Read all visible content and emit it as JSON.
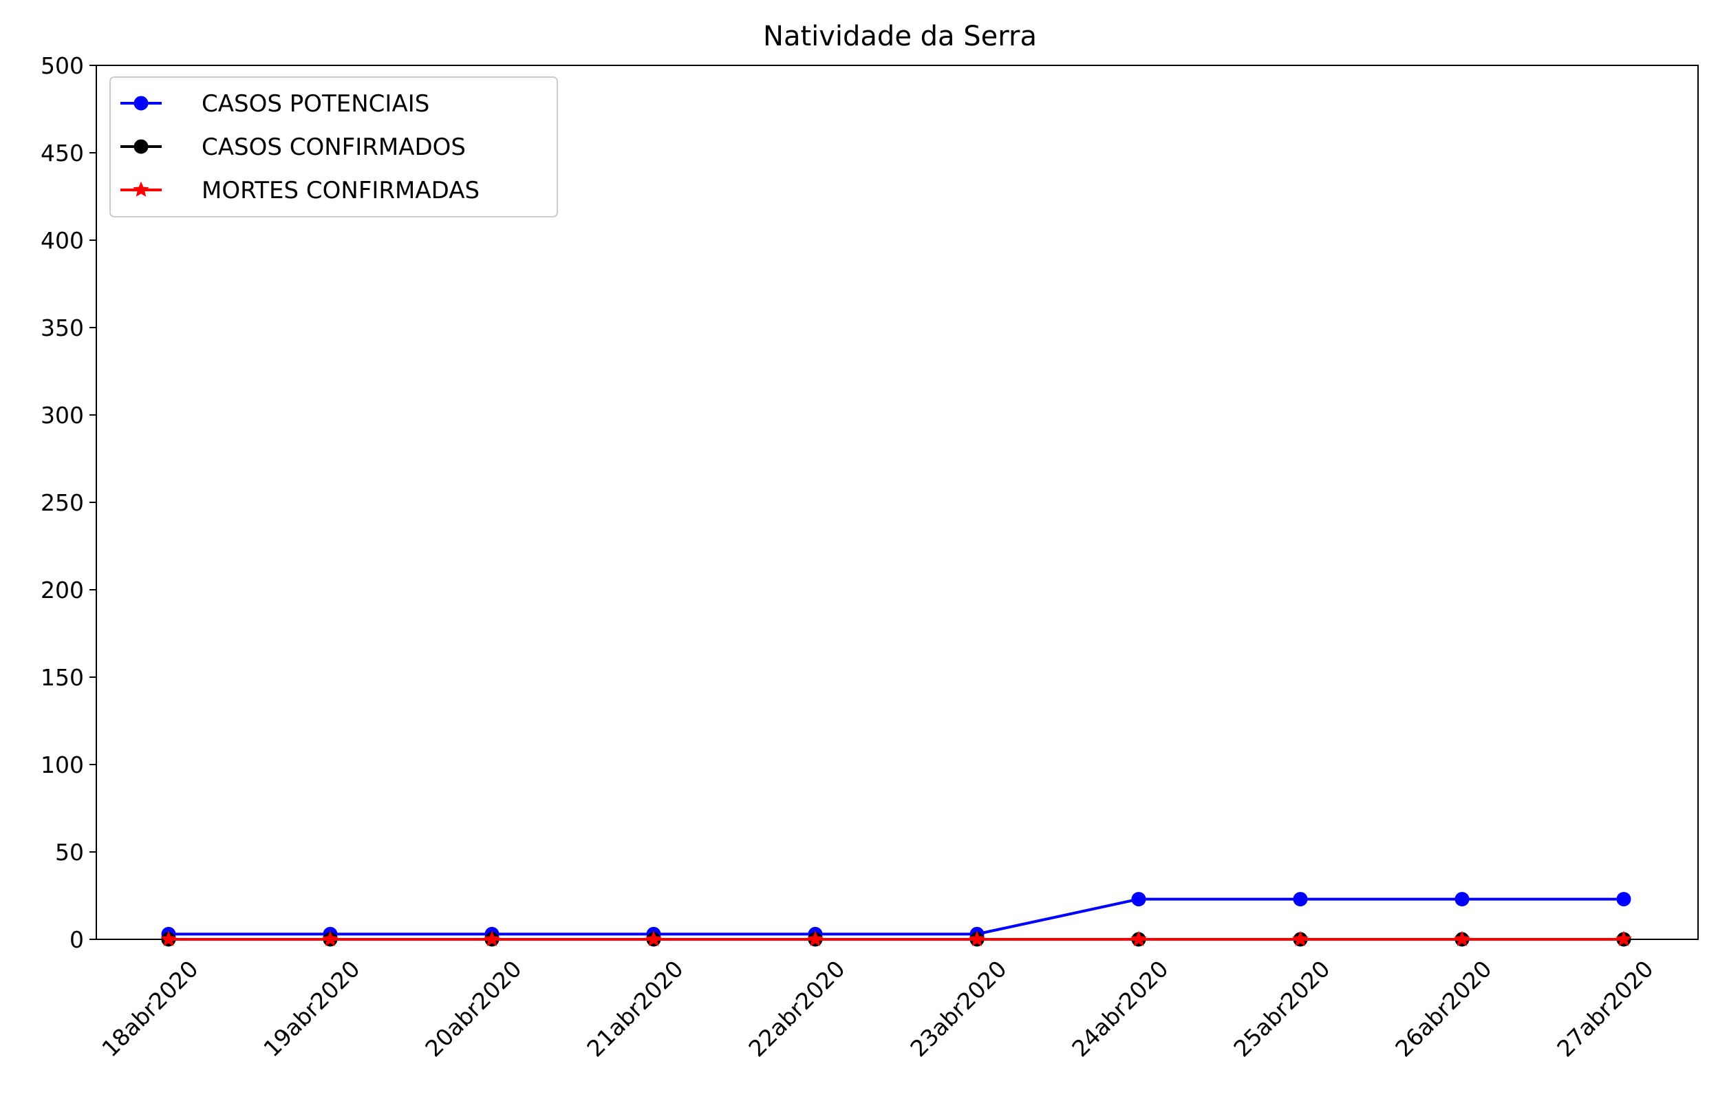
{
  "chart_data": {
    "type": "line",
    "title": "Natividade da Serra",
    "xlabel": "",
    "ylabel": "",
    "categories": [
      "18abr2020",
      "19abr2020",
      "20abr2020",
      "21abr2020",
      "22abr2020",
      "23abr2020",
      "24abr2020",
      "25abr2020",
      "26abr2020",
      "27abr2020"
    ],
    "ylim": [
      0,
      500
    ],
    "yticks": [
      "0",
      "50",
      "100",
      "150",
      "200",
      "250",
      "300",
      "350",
      "400",
      "450",
      "500"
    ],
    "grid": false,
    "legend_position": "top-left",
    "series": [
      {
        "name": "CASOS POTENCIAIS",
        "color": "#0000ff",
        "marker": "circle",
        "values": [
          3,
          3,
          3,
          3,
          3,
          3,
          23,
          23,
          23,
          23
        ]
      },
      {
        "name": "CASOS CONFIRMADOS",
        "color": "#000000",
        "marker": "circle",
        "values": [
          0,
          0,
          0,
          0,
          0,
          0,
          0,
          0,
          0,
          0
        ]
      },
      {
        "name": "MORTES CONFIRMADAS",
        "color": "#ff0000",
        "marker": "star",
        "values": [
          0,
          0,
          0,
          0,
          0,
          0,
          0,
          0,
          0,
          0
        ]
      }
    ]
  }
}
